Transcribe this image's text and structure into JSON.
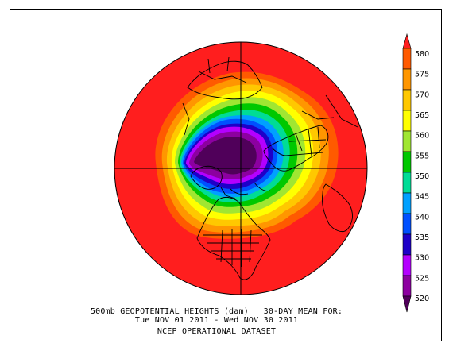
{
  "title": {
    "line1": "500mb GEOPOTENTIAL HEIGHTS (dam)   30-DAY MEAN FOR:",
    "line2": "Tue NOV 01 2011 - Wed NOV 30 2011",
    "line3": "NCEP OPERATIONAL DATASET"
  },
  "colorbar": {
    "labels": [
      "580",
      "575",
      "570",
      "565",
      "560",
      "555",
      "550",
      "545",
      "540",
      "535",
      "530",
      "525",
      "520"
    ],
    "colors": [
      "#ff1e1e",
      "#ff5a00",
      "#ff9600",
      "#ffc800",
      "#ffff00",
      "#a0e632",
      "#00c800",
      "#00dc96",
      "#00a0ff",
      "#0050ff",
      "#1e00c8",
      "#b400ff",
      "#8c00a0",
      "#50005a"
    ]
  },
  "map": {
    "projection": "polar-stereographic",
    "hemisphere": "northern"
  }
}
